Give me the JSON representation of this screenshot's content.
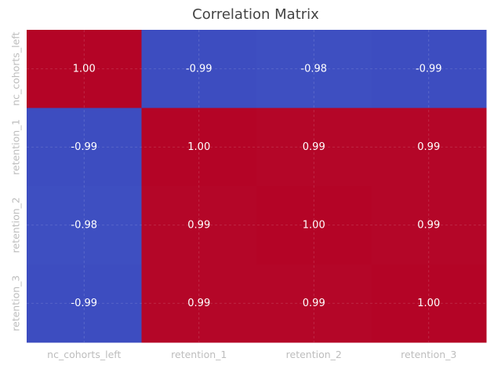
{
  "chart_data": {
    "type": "heatmap",
    "title": "Correlation Matrix",
    "xlabel": "",
    "ylabel": "",
    "x_categories": [
      "nc_cohorts_left",
      "retention_1",
      "retention_2",
      "retention_3"
    ],
    "y_categories": [
      "nc_cohorts_left",
      "retention_1",
      "retention_2",
      "retention_3"
    ],
    "values": [
      [
        1.0,
        -0.99,
        -0.98,
        -0.99
      ],
      [
        -0.99,
        1.0,
        0.99,
        0.99
      ],
      [
        -0.98,
        0.99,
        1.0,
        0.99
      ],
      [
        -0.99,
        0.99,
        0.99,
        1.0
      ]
    ],
    "cell_labels": [
      [
        "1.00",
        "-0.99",
        "-0.98",
        "-0.99"
      ],
      [
        "-0.99",
        "1.00",
        "0.99",
        "0.99"
      ],
      [
        "-0.98",
        "0.99",
        "1.00",
        "0.99"
      ],
      [
        "-0.99",
        "0.99",
        "0.99",
        "1.00"
      ]
    ],
    "colormap": "coolwarm",
    "value_range": [
      -1,
      1
    ],
    "colors": {
      "low": "#3b4cc0",
      "mid": "#dddddd",
      "high": "#b40426"
    },
    "colorbar": false,
    "grid": true
  }
}
